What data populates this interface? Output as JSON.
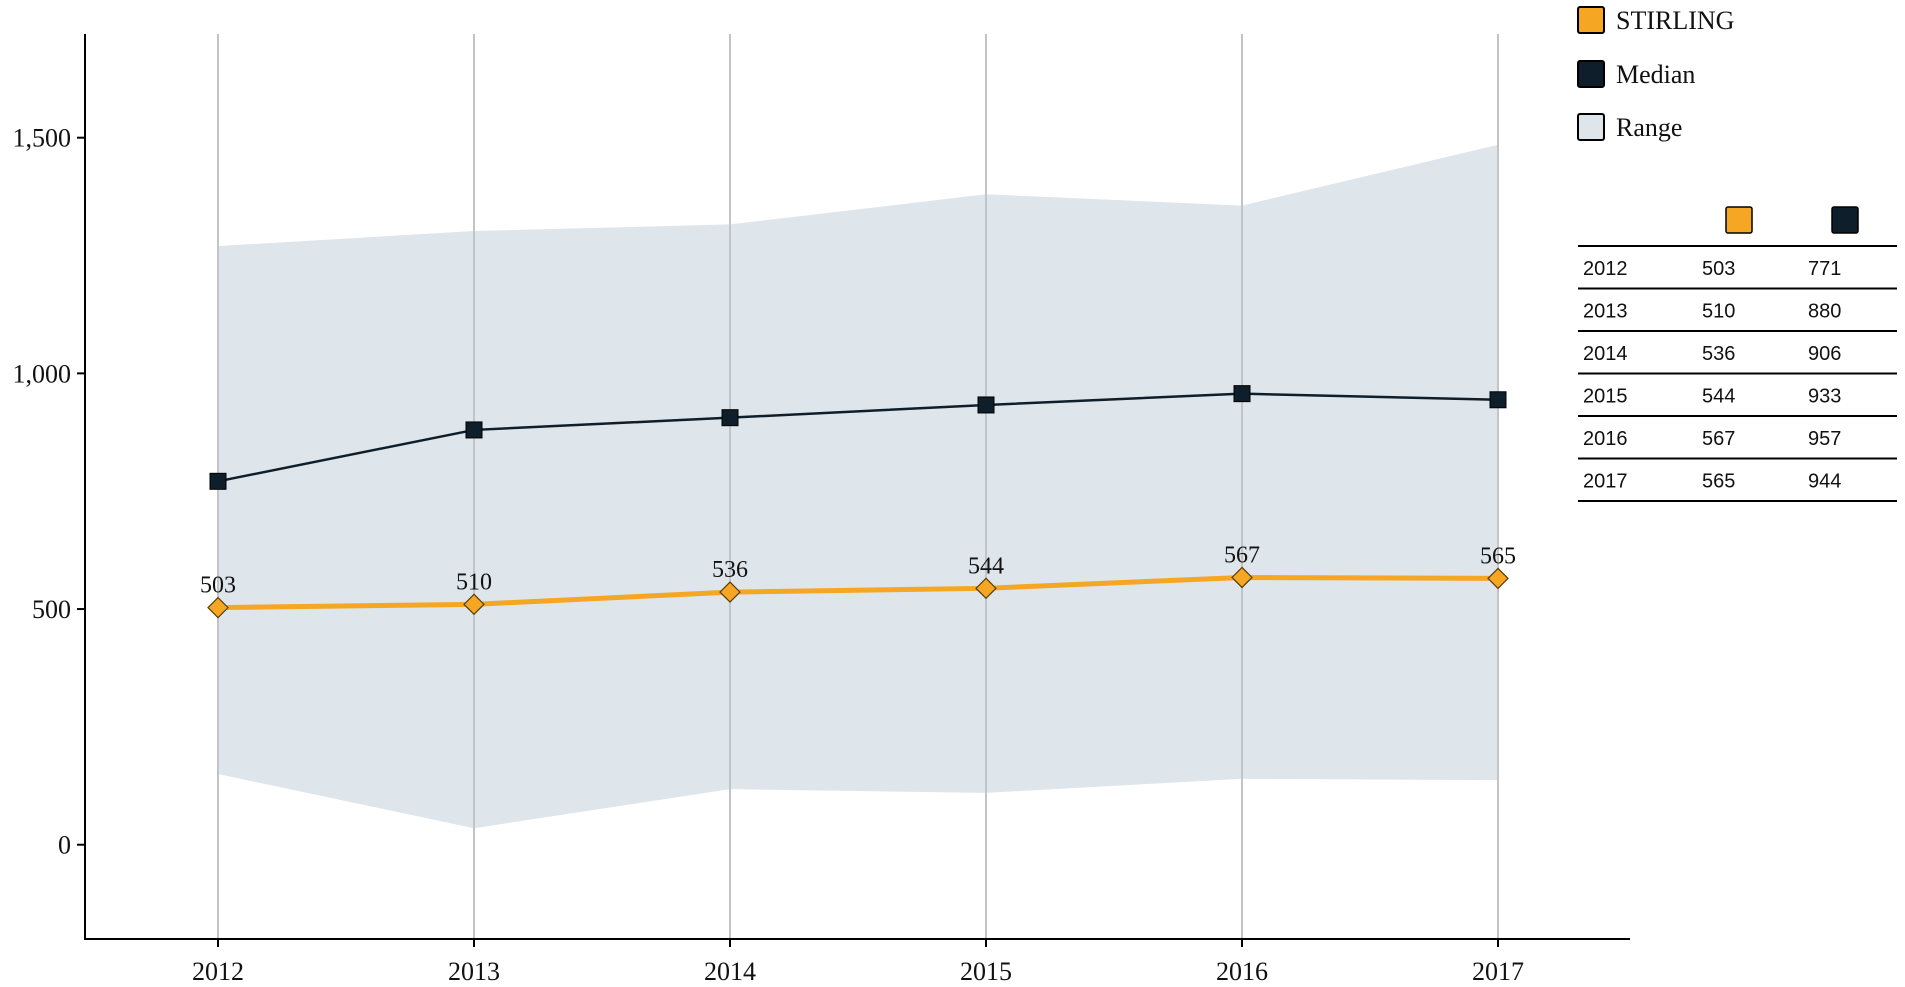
{
  "chart_data": {
    "type": "line",
    "categories": [
      "2012",
      "2013",
      "2014",
      "2015",
      "2016",
      "2017"
    ],
    "y_ticks": [
      0,
      500,
      1000,
      1500
    ],
    "y_tick_labels": [
      "0",
      "500",
      "1,000",
      "1,500"
    ],
    "ylim": [
      -200,
      1720
    ],
    "grid": "vertical",
    "legend_position": "top-right",
    "series": [
      {
        "name": "STIRLING",
        "values": [
          503,
          510,
          536,
          544,
          567,
          565
        ],
        "point_labels": [
          "503",
          "510",
          "536",
          "544",
          "567",
          "565"
        ],
        "color": "#f5a623",
        "marker": "diamond"
      },
      {
        "name": "Median",
        "values": [
          771,
          880,
          906,
          933,
          957,
          944
        ],
        "color": "#0e1f2b",
        "marker": "square"
      }
    ],
    "range": {
      "name": "Range",
      "lower": [
        150,
        35,
        118,
        110,
        140,
        137
      ],
      "upper": [
        1270,
        1302,
        1316,
        1380,
        1356,
        1485
      ],
      "color": "#dee5eb"
    },
    "table": {
      "rows": [
        {
          "year": "2012",
          "stirling": "503",
          "median": "771"
        },
        {
          "year": "2013",
          "stirling": "510",
          "median": "880"
        },
        {
          "year": "2014",
          "stirling": "536",
          "median": "906"
        },
        {
          "year": "2015",
          "stirling": "544",
          "median": "933"
        },
        {
          "year": "2016",
          "stirling": "567",
          "median": "957"
        },
        {
          "year": "2017",
          "stirling": "565",
          "median": "944"
        }
      ]
    }
  }
}
